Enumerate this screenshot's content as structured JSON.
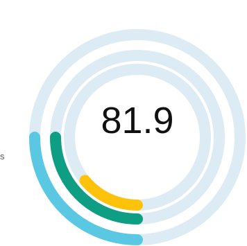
{
  "chart_data": {
    "type": "radial-progress",
    "center_label": "81.9",
    "side_label": "s",
    "scale": [
      0,
      100
    ],
    "track_color": "#DCEBF4",
    "rings": [
      {
        "value": 25,
        "color": "#5BC8E3"
      },
      {
        "value": 25,
        "color": "#0E9E83"
      },
      {
        "value": 14,
        "color": "#FFC20A"
      }
    ]
  }
}
